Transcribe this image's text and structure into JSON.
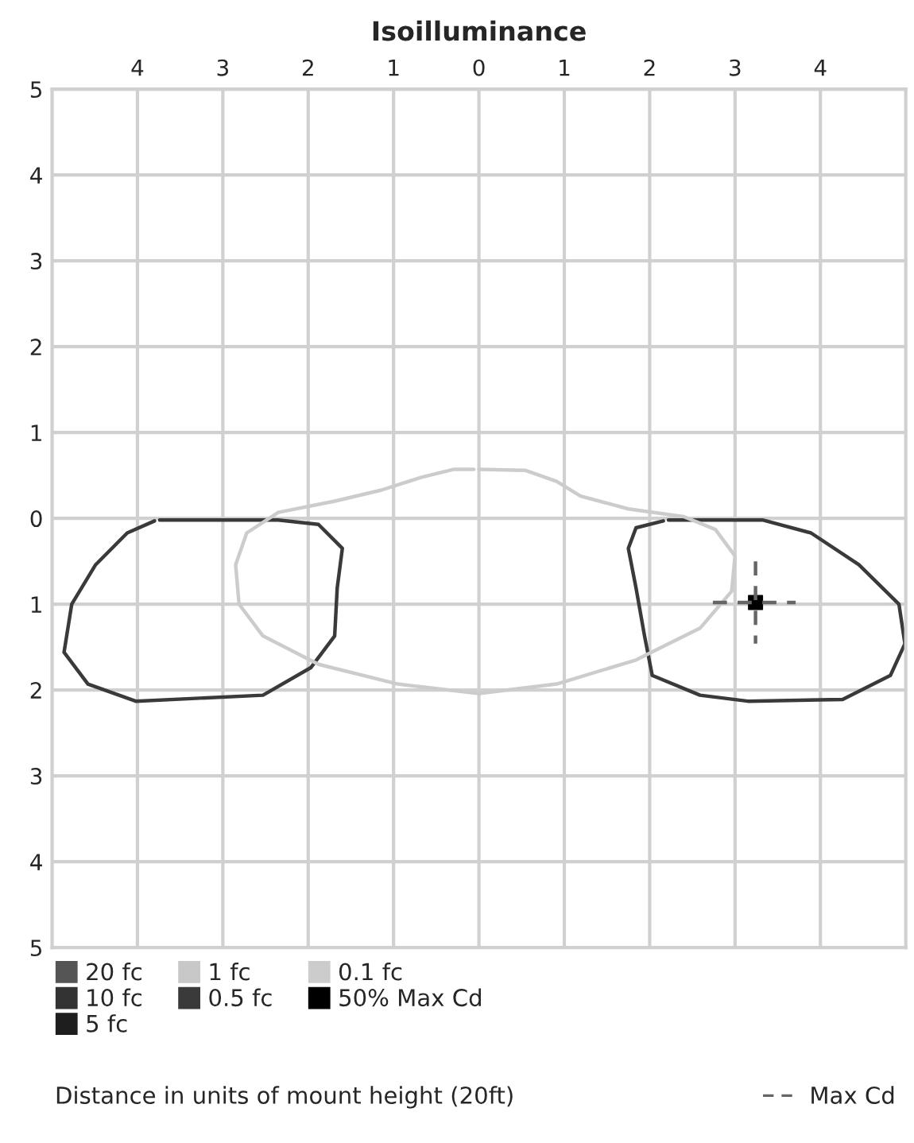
{
  "chart_data": {
    "type": "line",
    "title": "Isoilluminance",
    "annotations": [
      "Distance in units of mount height (20ft)"
    ],
    "xlim": [
      -5,
      5
    ],
    "ylim": [
      -5,
      5
    ],
    "xticks": [
      {
        "value": -4,
        "label": "4"
      },
      {
        "value": -3,
        "label": "3"
      },
      {
        "value": -2,
        "label": "2"
      },
      {
        "value": -1,
        "label": "1"
      },
      0,
      1,
      2,
      3,
      4
    ],
    "yticks": [
      {
        "value": 5,
        "label": "5"
      },
      4,
      3,
      2,
      1,
      0,
      {
        "value": -1,
        "label": "1"
      },
      {
        "value": -2,
        "label": "2"
      },
      {
        "value": -3,
        "label": "3"
      },
      {
        "value": -4,
        "label": "4"
      },
      {
        "value": -5,
        "label": "5"
      }
    ],
    "grid": true,
    "legend": "bottom",
    "series": [
      {
        "name": "20 fc",
        "color": "#555555"
      },
      {
        "name": "10 fc",
        "color": "#333333"
      },
      {
        "name": "5 fc",
        "color": "#1e1e1e"
      },
      {
        "name": "1 fc",
        "color": "#c8c8c8"
      },
      {
        "name": "0.5 fc",
        "color": "#3a3a3a",
        "x": [
          -3.74,
          -2.35,
          -1.88,
          -1.6,
          -1.66,
          -1.69,
          -1.97,
          -2.53,
          -4.02,
          -4.58,
          -4.86,
          -4.77,
          -4.49,
          -4.12,
          -3.8
        ],
        "values": [
          -0.02,
          -0.02,
          -0.07,
          -0.35,
          -0.81,
          -1.37,
          -1.74,
          -2.06,
          -2.13,
          -1.93,
          -1.56,
          -1.0,
          -0.54,
          -0.17,
          -0.03
        ]
      },
      {
        "color": "#3a3a3a",
        "x": [
          2.22,
          3.33,
          3.89,
          4.45,
          4.92,
          4.99,
          4.82,
          4.26,
          3.15,
          2.59,
          2.03,
          1.94,
          1.84,
          1.75,
          1.84,
          2.16
        ],
        "values": [
          -0.02,
          -0.02,
          -0.17,
          -0.54,
          -1.0,
          -1.46,
          -1.83,
          -2.11,
          -2.13,
          -2.06,
          -1.83,
          -1.37,
          -0.81,
          -0.35,
          -0.11,
          -0.03
        ]
      },
      {
        "name": "0.1 fc",
        "color": "#cccccc",
        "x": [
          0,
          0.54,
          0.91,
          1.19,
          1.75,
          2.4,
          2.77,
          3.0,
          2.96,
          2.59,
          1.84,
          0.91,
          0,
          -0.95,
          -1.88,
          -2.53,
          -2.81,
          -2.85,
          -2.72,
          -2.35,
          -1.69,
          -1.14,
          -0.67,
          -0.3,
          -0.06
        ],
        "values": [
          0.57,
          0.56,
          0.43,
          0.26,
          0.11,
          0.02,
          -0.13,
          -0.44,
          -0.85,
          -1.28,
          -1.65,
          -1.93,
          -2.04,
          -1.93,
          -1.7,
          -1.37,
          -1.0,
          -0.54,
          -0.17,
          0.07,
          0.2,
          0.33,
          0.48,
          0.57,
          0.57
        ]
      },
      {
        "name": "50% Max Cd",
        "type": "scatter",
        "marker": "square",
        "color": "#000000",
        "x": [
          3.24
        ],
        "values": [
          -0.98
        ]
      },
      {
        "name": "Max Cd",
        "color": "#666666",
        "line_style": "dashed",
        "x": [
          2.74,
          3.71
        ],
        "values": [
          -0.98,
          -0.98
        ]
      },
      {
        "color": "#666666",
        "line_style": "dashed",
        "x": [
          3.24,
          3.24
        ],
        "values": [
          -0.5,
          -1.46
        ]
      }
    ]
  }
}
